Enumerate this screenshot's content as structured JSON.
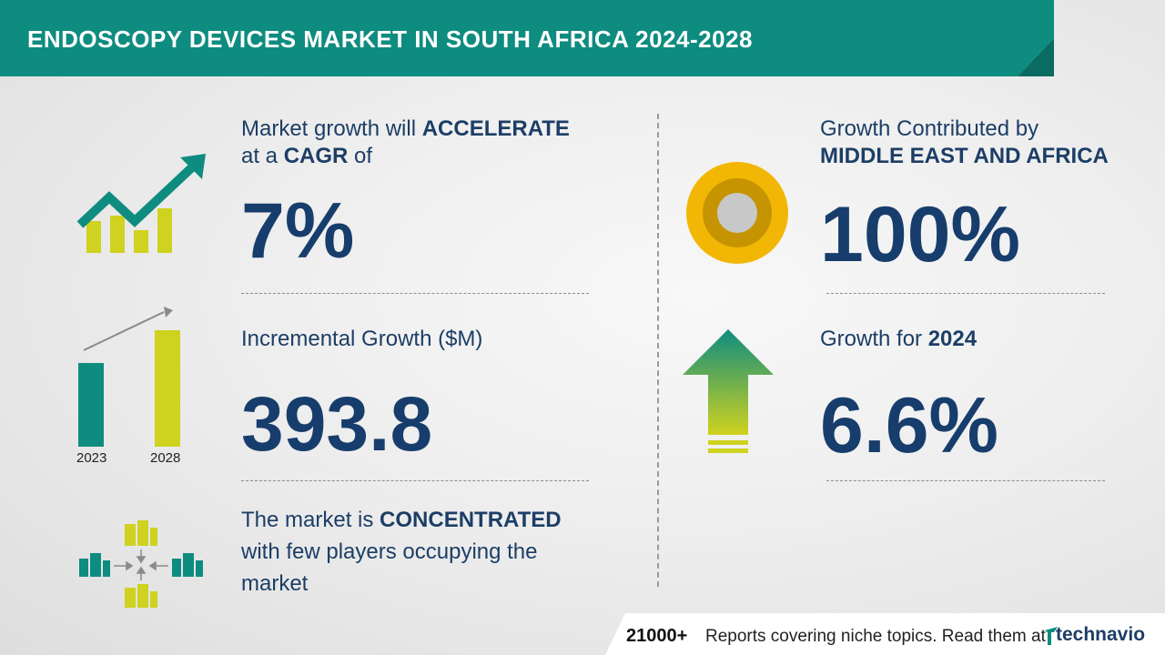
{
  "header": {
    "title": "ENDOSCOPY DEVICES MARKET IN SOUTH AFRICA 2024-2028"
  },
  "cagr": {
    "label_part1": "Market growth will ",
    "label_bold1": "ACCELERATE",
    "label_part2": "at a ",
    "label_bold2": "CAGR",
    "label_part3": " of",
    "value": "7%",
    "icon": "growth-chart-arrow-icon"
  },
  "incremental": {
    "label": "Incremental Growth ($M)",
    "value": "393.8",
    "year_start": "2023",
    "year_end": "2028",
    "icon": "bar-comparison-icon"
  },
  "concentration": {
    "label_part1": "The market is ",
    "label_bold": "CONCENTRATED",
    "line2": "with few players occupying the",
    "line3": "market",
    "icon": "buildings-converging-icon"
  },
  "region": {
    "label_line1": "Growth Contributed by",
    "label_bold": "MIDDLE EAST AND AFRICA",
    "value": "100%",
    "icon": "donut-icon"
  },
  "yoy": {
    "label_part1": "Growth for ",
    "label_bold": "2024",
    "value": "6.6%",
    "icon": "up-arrow-icon"
  },
  "footer": {
    "count": "21000+",
    "text": "Reports covering niche topics. Read them at",
    "brand": "technavio"
  },
  "colors": {
    "teal": "#0e8c80",
    "navy": "#173d6c",
    "yellow_green": "#cfd21e",
    "gold": "#f2b705"
  }
}
